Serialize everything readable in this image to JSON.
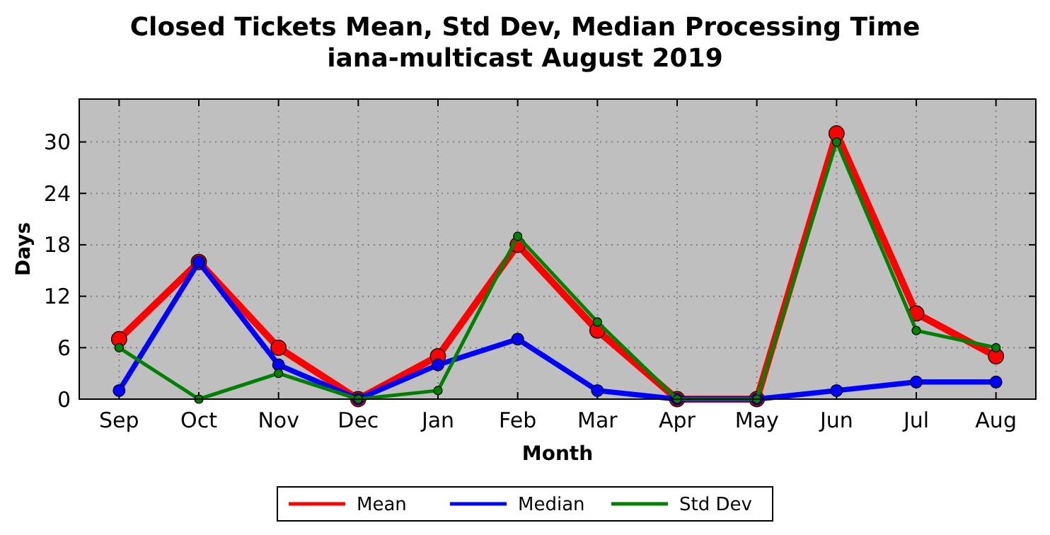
{
  "chart_data": {
    "type": "line",
    "title": "Closed Tickets Mean, Std Dev, Median Processing Time",
    "subtitle": "iana-multicast August 2019",
    "xlabel": "Month",
    "ylabel": "Days",
    "categories": [
      "Sep",
      "Oct",
      "Nov",
      "Dec",
      "Jan",
      "Feb",
      "Mar",
      "Apr",
      "May",
      "Jun",
      "Jul",
      "Aug"
    ],
    "series": [
      {
        "name": "Mean",
        "color": "#ff0000",
        "values": [
          7,
          16,
          6,
          0,
          5,
          18,
          8,
          0,
          0,
          31,
          10,
          5
        ]
      },
      {
        "name": "Median",
        "color": "#0000ff",
        "values": [
          1,
          16,
          4,
          0,
          4,
          7,
          1,
          0,
          0,
          1,
          2,
          2
        ]
      },
      {
        "name": "Std Dev",
        "color": "#008000",
        "values": [
          6,
          0,
          3,
          0,
          1,
          19,
          9,
          0,
          0,
          30,
          8,
          6
        ]
      }
    ],
    "ylim": [
      0,
      35
    ],
    "yticks": [
      0,
      6,
      12,
      18,
      24,
      30
    ],
    "grid": true,
    "legend": "bottom",
    "marker": "circle",
    "line_style": "solid"
  }
}
